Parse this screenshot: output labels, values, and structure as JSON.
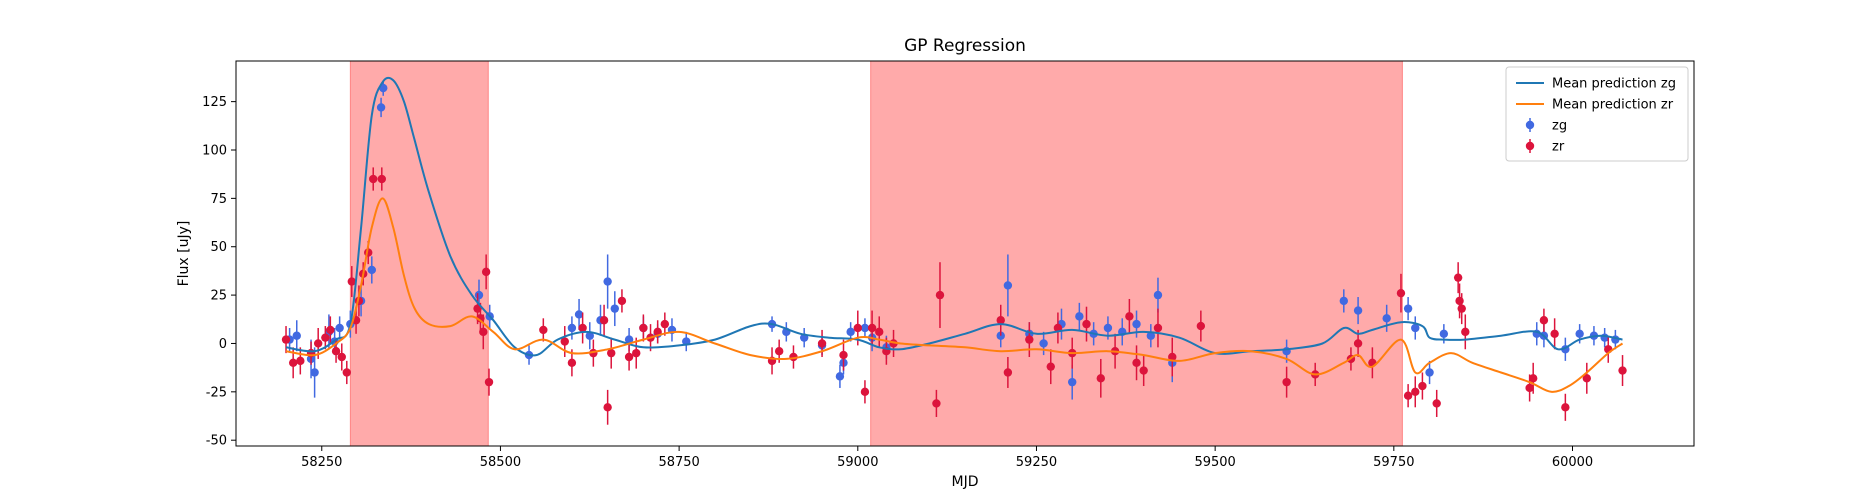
{
  "chart_data": {
    "type": "scatter",
    "title": "GP Regression",
    "xlabel": "MJD",
    "ylabel": "Flux [uJy]",
    "xlim": [
      58130,
      60170
    ],
    "ylim": [
      -53,
      146
    ],
    "xticks": [
      58250,
      58500,
      58750,
      59000,
      59250,
      59500,
      59750,
      60000
    ],
    "yticks": [
      -50,
      -25,
      0,
      25,
      50,
      75,
      100,
      125
    ],
    "grid": false,
    "legend": {
      "position": "top-right",
      "entries": [
        "Mean prediction zg",
        "Mean prediction zr",
        "zg",
        "zr"
      ]
    },
    "colors": {
      "zg": "#4169e1",
      "zr": "#dc143c",
      "mean_zg": "#1f77b4",
      "mean_zr": "#ff7f0e",
      "shade": "#ff5555"
    },
    "shaded_regions": [
      {
        "x0": 58290,
        "x1": 58483
      },
      {
        "x0": 59018,
        "x1": 59762
      }
    ],
    "series": [
      {
        "name": "Mean prediction zg",
        "kind": "line",
        "x": [
          58200,
          58240,
          58270,
          58290,
          58305,
          58320,
          58335,
          58350,
          58365,
          58380,
          58400,
          58430,
          58460,
          58490,
          58520,
          58550,
          58580,
          58620,
          58660,
          58700,
          58750,
          58800,
          58850,
          58880,
          58920,
          58960,
          59000,
          59030,
          59060,
          59100,
          59150,
          59200,
          59250,
          59300,
          59350,
          59400,
          59450,
          59500,
          59550,
          59600,
          59650,
          59680,
          59700,
          59720,
          59760,
          59790,
          59800,
          59820,
          59850,
          59900,
          59950,
          59980,
          60010,
          60040,
          60070
        ],
        "y": [
          -2,
          -4,
          2,
          10,
          60,
          118,
          135,
          136,
          125,
          105,
          78,
          45,
          25,
          12,
          -2,
          -6,
          2,
          6,
          2,
          -2,
          -1,
          2,
          9,
          10,
          5,
          3,
          2,
          -2,
          -3,
          0,
          5,
          10,
          5,
          7,
          4,
          6,
          3,
          -5,
          -4,
          -3,
          0,
          8,
          5,
          7,
          11,
          9,
          3,
          2,
          2,
          4,
          6,
          -3,
          2,
          4,
          2
        ]
      },
      {
        "name": "Mean prediction zr",
        "kind": "line",
        "x": [
          58200,
          58240,
          58270,
          58290,
          58305,
          58320,
          58335,
          58350,
          58365,
          58380,
          58400,
          58430,
          58460,
          58490,
          58520,
          58560,
          58600,
          58650,
          58700,
          58750,
          58800,
          58850,
          58900,
          58950,
          59000,
          59030,
          59060,
          59100,
          59150,
          59200,
          59250,
          59300,
          59350,
          59400,
          59450,
          59500,
          59550,
          59600,
          59640,
          59680,
          59700,
          59720,
          59760,
          59780,
          59800,
          59830,
          59860,
          59900,
          59940,
          59970,
          59995,
          60020,
          60050,
          60070
        ],
        "y": [
          -4,
          -6,
          0,
          8,
          30,
          60,
          75,
          60,
          35,
          18,
          10,
          9,
          14,
          6,
          -3,
          2,
          -5,
          -3,
          2,
          6,
          0,
          -6,
          -8,
          -4,
          3,
          2,
          0,
          -1,
          -2,
          -4,
          -3,
          -5,
          -4,
          -6,
          -9,
          -5,
          -4,
          -8,
          -16,
          -10,
          -6,
          -12,
          2,
          -15,
          -10,
          -5,
          -10,
          -15,
          -20,
          -25,
          -22,
          -15,
          -5,
          0
        ]
      },
      {
        "name": "zg",
        "kind": "errorbar",
        "x": [
          58205,
          58215,
          58235,
          58240,
          58260,
          58268,
          58275,
          58290,
          58305,
          58320,
          58333,
          58336,
          58470,
          58485,
          58540,
          58600,
          58610,
          58625,
          58640,
          58650,
          58660,
          58680,
          58700,
          58720,
          58740,
          58760,
          58880,
          58900,
          58925,
          58950,
          58975,
          58980,
          58990,
          59010,
          59020,
          59040,
          59200,
          59210,
          59240,
          59260,
          59285,
          59300,
          59310,
          59330,
          59350,
          59370,
          59390,
          59410,
          59420,
          59440,
          59600,
          59680,
          59700,
          59740,
          59770,
          59780,
          59800,
          59820,
          59950,
          59960,
          59990,
          60010,
          60030,
          60045,
          60060
        ],
        "y": [
          2,
          4,
          -8,
          -15,
          6,
          1,
          8,
          10,
          22,
          38,
          122,
          132,
          25,
          14,
          -6,
          8,
          15,
          4,
          12,
          32,
          18,
          2,
          8,
          5,
          7,
          1,
          10,
          6,
          3,
          -1,
          -17,
          -10,
          6,
          8,
          3,
          -2,
          4,
          30,
          5,
          0,
          10,
          -20,
          14,
          5,
          8,
          6,
          10,
          4,
          25,
          -10,
          -4,
          22,
          17,
          13,
          18,
          8,
          -15,
          5,
          5,
          4,
          -3,
          5,
          4,
          3,
          2
        ],
        "err": [
          6,
          8,
          10,
          13,
          9,
          7,
          6,
          7,
          8,
          7,
          5,
          4,
          8,
          6,
          5,
          6,
          8,
          7,
          8,
          14,
          9,
          6,
          6,
          5,
          6,
          5,
          4,
          5,
          5,
          5,
          6,
          6,
          5,
          5,
          7,
          6,
          6,
          16,
          6,
          6,
          8,
          9,
          7,
          6,
          6,
          7,
          7,
          6,
          9,
          10,
          6,
          6,
          7,
          7,
          6,
          6,
          6,
          5,
          6,
          6,
          6,
          5,
          5,
          5,
          5
        ]
      },
      {
        "name": "zr",
        "kind": "errorbar",
        "x": [
          58200,
          58210,
          58220,
          58235,
          58245,
          58255,
          58262,
          58270,
          58278,
          58285,
          58292,
          58298,
          58302,
          58308,
          58315,
          58322,
          58334,
          58468,
          58472,
          58476,
          58480,
          58484,
          58560,
          58590,
          58600,
          58615,
          58630,
          58645,
          58650,
          58655,
          58670,
          58680,
          58690,
          58700,
          58710,
          58720,
          58730,
          58880,
          58890,
          58910,
          58950,
          58980,
          59000,
          59010,
          59020,
          59030,
          59040,
          59050,
          59110,
          59115,
          59200,
          59210,
          59240,
          59270,
          59280,
          59300,
          59320,
          59340,
          59360,
          59380,
          59390,
          59400,
          59420,
          59440,
          59480,
          59600,
          59640,
          59690,
          59700,
          59720,
          59760,
          59770,
          59780,
          59790,
          59810,
          59840,
          59842,
          59845,
          59850,
          59940,
          59945,
          59960,
          59975,
          59990,
          60020,
          60050,
          60070
        ],
        "y": [
          2,
          -10,
          -9,
          -5,
          0,
          3,
          7,
          -4,
          -7,
          -15,
          32,
          12,
          22,
          36,
          47,
          85,
          85,
          18,
          13,
          6,
          37,
          -20,
          7,
          1,
          -10,
          8,
          -5,
          12,
          -33,
          -5,
          22,
          -7,
          -5,
          8,
          3,
          6,
          10,
          -9,
          -4,
          -7,
          0,
          -6,
          8,
          -25,
          8,
          6,
          -4,
          0,
          -31,
          25,
          12,
          -15,
          2,
          -12,
          8,
          -5,
          10,
          -18,
          -4,
          14,
          -10,
          -14,
          8,
          -7,
          9,
          -20,
          -16,
          -8,
          0,
          -10,
          26,
          -27,
          -25,
          -22,
          -31,
          34,
          22,
          18,
          6,
          -23,
          -18,
          12,
          5,
          -33,
          -18,
          -3,
          -14
        ],
        "err": [
          7,
          8,
          7,
          6,
          8,
          6,
          7,
          6,
          7,
          6,
          8,
          7,
          8,
          6,
          6,
          6,
          6,
          8,
          8,
          9,
          9,
          7,
          6,
          8,
          7,
          8,
          7,
          8,
          9,
          8,
          6,
          7,
          8,
          7,
          7,
          6,
          6,
          7,
          6,
          6,
          7,
          8,
          9,
          6,
          9,
          8,
          7,
          7,
          7,
          17,
          8,
          8,
          9,
          9,
          8,
          8,
          9,
          10,
          9,
          9,
          9,
          8,
          10,
          10,
          8,
          8,
          6,
          6,
          7,
          8,
          10,
          6,
          8,
          7,
          7,
          8,
          9,
          8,
          9,
          7,
          8,
          6,
          8,
          7,
          8,
          7,
          8
        ]
      }
    ]
  }
}
